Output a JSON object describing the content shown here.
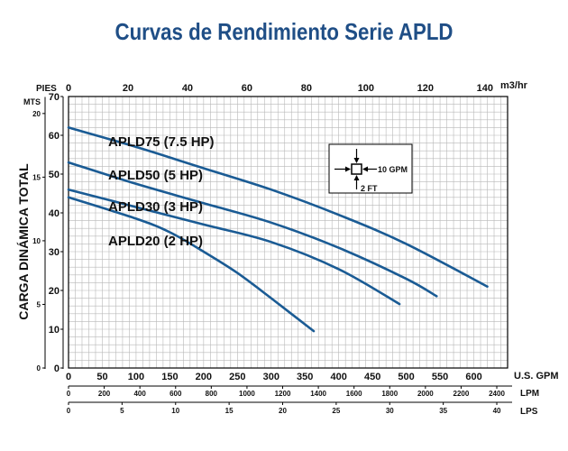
{
  "chart_data": {
    "type": "line",
    "title": "Curvas de Rendimiento Serie APLD",
    "ylabel": "CARGA DINÁMICA TOTAL",
    "grid": true,
    "x_axis_bottom": {
      "label": "U.S. GPM",
      "range": [
        0,
        650
      ],
      "ticks": [
        "0",
        "50",
        "100",
        "150",
        "200",
        "250",
        "300",
        "350",
        "400",
        "450",
        "500",
        "550",
        "600"
      ]
    },
    "x_axis_top": {
      "label": "m3/hr",
      "ticks": [
        "0",
        "20",
        "40",
        "60",
        "80",
        "100",
        "120",
        "140"
      ]
    },
    "x_axis_lpm": {
      "label": "LPM",
      "ticks": [
        "0",
        "200",
        "400",
        "600",
        "800",
        "1000",
        "1200",
        "1400",
        "1600",
        "1800",
        "2000",
        "2200",
        "2400"
      ]
    },
    "x_axis_lps": {
      "label": "LPS",
      "ticks": [
        "0",
        "5",
        "10",
        "15",
        "20",
        "25",
        "30",
        "35",
        "40"
      ]
    },
    "y_axis_feet": {
      "label": "PIES",
      "range": [
        0,
        70
      ],
      "ticks": [
        "0",
        "10",
        "20",
        "30",
        "40",
        "50",
        "60",
        "70"
      ]
    },
    "y_axis_meters": {
      "label": "MTS",
      "ticks": [
        "0",
        "5",
        "10",
        "15",
        "20"
      ]
    },
    "legend_box": {
      "flow_label": "10 GPM",
      "head_label": "2 FT"
    },
    "series": [
      {
        "name": "APLD75 (7.5 HP)",
        "x": [
          0,
          100,
          200,
          300,
          400,
          500,
          620
        ],
        "y": [
          62,
          57,
          51.5,
          46,
          39.5,
          32,
          21
        ]
      },
      {
        "name": "APLD50 (5 HP)",
        "x": [
          0,
          100,
          200,
          300,
          400,
          500,
          545
        ],
        "y": [
          53,
          47.5,
          42.5,
          37.5,
          31,
          23,
          18.5
        ]
      },
      {
        "name": "APLD30 (3 HP)",
        "x": [
          0,
          100,
          200,
          300,
          400,
          490
        ],
        "y": [
          46,
          41.5,
          37,
          32.5,
          25.5,
          16.5
        ]
      },
      {
        "name": "APLD20 (2 HP)",
        "x": [
          0,
          100,
          150,
          200,
          250,
          300,
          363
        ],
        "y": [
          44,
          38.5,
          35,
          30,
          24.5,
          18,
          9.5
        ]
      }
    ]
  },
  "colors": {
    "curve": "#1a5b94",
    "title": "#1f4e86",
    "grid": "#b8b8b8",
    "box": "#000000"
  }
}
